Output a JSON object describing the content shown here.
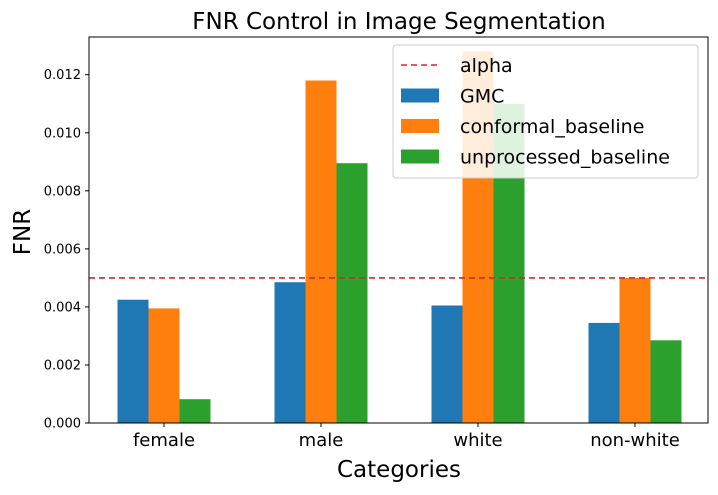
{
  "chart_data": {
    "type": "bar",
    "title": "FNR Control in Image Segmentation",
    "xlabel": "Categories",
    "ylabel": "FNR",
    "categories": [
      "female",
      "male",
      "white",
      "non-white"
    ],
    "ylim": [
      0,
      0.0133
    ],
    "yticks": [
      0.0,
      0.002,
      0.004,
      0.006,
      0.008,
      0.01,
      0.012
    ],
    "ytick_labels": [
      "0.000",
      "0.002",
      "0.004",
      "0.006",
      "0.008",
      "0.010",
      "0.012"
    ],
    "series": [
      {
        "name": "GMC",
        "color": "#1f77b4",
        "values": [
          0.00425,
          0.00485,
          0.00405,
          0.00345
        ]
      },
      {
        "name": "conformal_baseline",
        "color": "#ff7f0e",
        "values": [
          0.00395,
          0.0118,
          0.0128,
          0.005
        ]
      },
      {
        "name": "unprocessed_baseline",
        "color": "#2ca02c",
        "values": [
          0.00082,
          0.00895,
          0.011,
          0.00285
        ]
      }
    ],
    "reference_line": {
      "name": "alpha",
      "value": 0.005,
      "color": "#d62728",
      "style": "dashed"
    },
    "legend": {
      "placement": "top-right",
      "entries": [
        "alpha",
        "GMC",
        "conformal_baseline",
        "unprocessed_baseline"
      ]
    },
    "grid": false
  }
}
